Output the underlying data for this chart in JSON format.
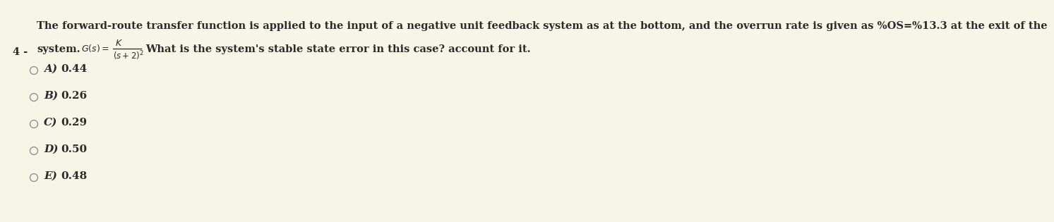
{
  "background_color": "#f5f5e8",
  "title_text": "The forward-route transfer function is applied to the input of a negative unit feedback system as at the bottom, and the overrun rate is given as %OS=%13.3 at the exit of the",
  "line2_suffix": "What is the system's stable state error in this case? account for it.",
  "options": [
    {
      "label": "A)",
      "value": "0.44"
    },
    {
      "label": "B)",
      "value": "0.26"
    },
    {
      "label": "C)",
      "value": "0.29"
    },
    {
      "label": "D)",
      "value": "0.50"
    },
    {
      "label": "E)",
      "value": "0.48"
    }
  ],
  "title_fontsize": 10.5,
  "option_label_fontsize": 11.0,
  "option_value_fontsize": 11.0,
  "formula_fontsize": 9.0,
  "q_num_fontsize": 12.0
}
